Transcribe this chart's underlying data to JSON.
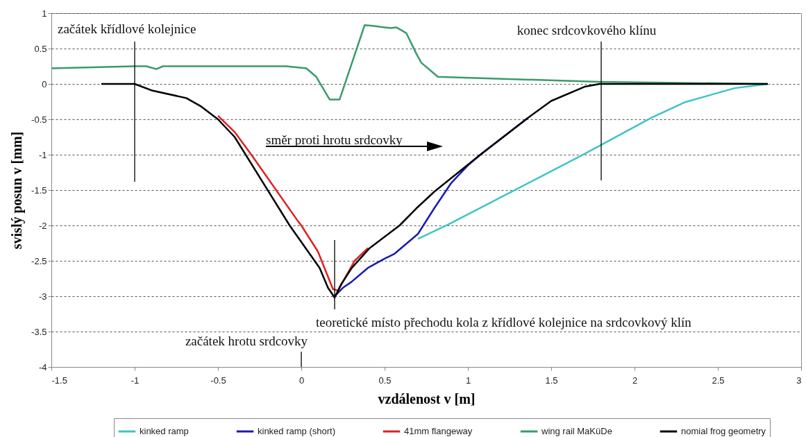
{
  "chart_data": {
    "type": "line",
    "xlabel": "vzdálenost v [m]",
    "ylabel": "svislý posun v [mm]",
    "xlim": [
      -1.5,
      3
    ],
    "xticks": [
      -1.5,
      -1,
      -0.5,
      0,
      0.5,
      1,
      1.5,
      2,
      2.5,
      3
    ],
    "ylim": [
      -4,
      1
    ],
    "yticks": [
      -4,
      -3.5,
      -3,
      -2.5,
      -2,
      -1.5,
      -1,
      -0.5,
      0,
      0.5,
      1
    ],
    "grid": "y",
    "legend": "bottom",
    "line_style": "solid",
    "marker": "none",
    "series": [
      {
        "name": "kinked ramp",
        "color": "#3ec4c4",
        "x": [
          0.7,
          0.88,
          1.7,
          2.1,
          2.3,
          2.6,
          2.8
        ],
        "values": [
          -2.19,
          -1.99,
          -0.99,
          -0.48,
          -0.26,
          -0.06,
          0
        ]
      },
      {
        "name": "kinked ramp (short)",
        "color": "#1a1ab4",
        "x": [
          0.2,
          0.25,
          0.3,
          0.4,
          0.5,
          0.56,
          0.7,
          0.8,
          0.9,
          1.0,
          1.08,
          1.36
        ],
        "values": [
          -3.0,
          -2.88,
          -2.8,
          -2.6,
          -2.47,
          -2.4,
          -2.12,
          -1.75,
          -1.4,
          -1.15,
          -0.99,
          -0.48
        ]
      },
      {
        "name": "41mm flangeway",
        "color": "#e02020",
        "x": [
          -0.5,
          -0.4,
          -0.3,
          -0.02,
          0,
          0.1,
          0.19,
          0.22,
          0.32,
          0.4
        ],
        "values": [
          -0.45,
          -0.68,
          -1.0,
          -1.94,
          -2.0,
          -2.37,
          -2.9,
          -2.92,
          -2.5,
          -2.32
        ]
      },
      {
        "name": "wing rail MaKüDe",
        "color": "#3a9a6a",
        "x": [
          -1.5,
          -1,
          -0.93,
          -0.87,
          -0.83,
          -0.09,
          0.03,
          0.09,
          0.17,
          0.23,
          0.27,
          0.38,
          0.43,
          0.5,
          0.54,
          0.57,
          0.63,
          0.69,
          0.72,
          0.82,
          1.79,
          2.8
        ],
        "values": [
          0.22,
          0.25,
          0.25,
          0.21,
          0.25,
          0.25,
          0.22,
          0.1,
          -0.22,
          -0.22,
          0.06,
          0.83,
          0.82,
          0.8,
          0.79,
          0.8,
          0.72,
          0.43,
          0.3,
          0.1,
          0.03,
          0
        ]
      },
      {
        "name": "nomial frog geometry",
        "color": "#000000",
        "x": [
          -1.2,
          -1,
          -0.9,
          -0.69,
          -0.6,
          -0.5,
          -0.4,
          -0.07,
          0.11,
          0.16,
          0.2,
          0.24,
          0.3,
          0.41,
          0.59,
          0.69,
          0.8,
          1.08,
          1.36,
          1.5,
          1.7,
          1.79,
          2.8
        ],
        "values": [
          0,
          0,
          -0.09,
          -0.2,
          -0.32,
          -0.5,
          -0.75,
          -2.0,
          -2.6,
          -2.88,
          -3.02,
          -2.83,
          -2.61,
          -2.32,
          -2.0,
          -1.76,
          -1.52,
          -0.99,
          -0.48,
          -0.24,
          -0.04,
          0,
          0
        ]
      }
    ],
    "ref_lines": [
      {
        "axis": "x",
        "value": -1,
        "label": "začátek křídlové kolejnice"
      },
      {
        "axis": "x",
        "value": 0.2,
        "label": "teoretické místo přechodu kola z křídlové kolejnice na srdcovkový klín"
      },
      {
        "axis": "x",
        "value": 0,
        "label": "začátek hrotu srdcovky"
      },
      {
        "axis": "x",
        "value": 1.8,
        "label": "konec srdcovkového klínu"
      }
    ],
    "annotations": [
      "směr proti hrotu srdcovky"
    ]
  }
}
